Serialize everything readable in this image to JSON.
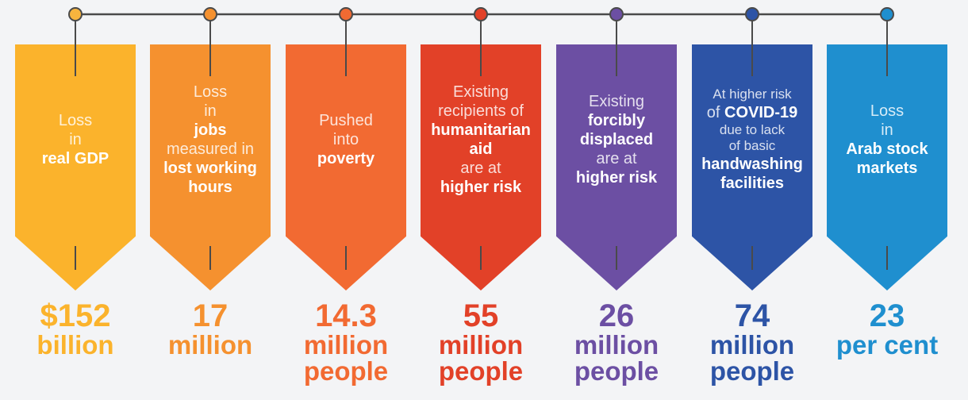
{
  "colors": {
    "connector_line": "#4a4a4a",
    "background": "#f3f4f6"
  },
  "cards": [
    {
      "color": "#fbb32c",
      "dot_color": "#f7b43e",
      "desc_lines": [
        {
          "text": "Loss",
          "weight": "light"
        },
        {
          "text": "in",
          "weight": "light"
        },
        {
          "text": "real GDP",
          "weight": "bold"
        }
      ],
      "value": "$152",
      "unit": [
        "billion"
      ]
    },
    {
      "color": "#f5912f",
      "dot_color": "#f5912f",
      "desc_lines": [
        {
          "text": "Loss",
          "weight": "light"
        },
        {
          "text": "in",
          "weight": "light"
        },
        {
          "text": "jobs",
          "weight": "bold"
        },
        {
          "text": "measured in",
          "weight": "light"
        },
        {
          "text": "lost working",
          "weight": "bold"
        },
        {
          "text": "hours",
          "weight": "bold"
        }
      ],
      "value": "17",
      "unit": [
        "million"
      ]
    },
    {
      "color": "#f26a32",
      "dot_color": "#f26a32",
      "desc_lines": [
        {
          "text": "Pushed",
          "weight": "light"
        },
        {
          "text": "into",
          "weight": "light"
        },
        {
          "text": "poverty",
          "weight": "bold"
        }
      ],
      "value": "14.3",
      "unit": [
        "million",
        "people"
      ]
    },
    {
      "color": "#e24128",
      "dot_color": "#e24128",
      "desc_lines": [
        {
          "text": "Existing",
          "weight": "light"
        },
        {
          "text": "recipients of",
          "weight": "light"
        },
        {
          "text": "humanitarian",
          "weight": "bold"
        },
        {
          "text": "aid",
          "weight": "bold"
        },
        {
          "text": "are at",
          "weight": "light"
        },
        {
          "text": "higher risk",
          "weight": "bold"
        }
      ],
      "value": "55",
      "unit": [
        "million",
        "people"
      ]
    },
    {
      "color": "#6c4fa3",
      "dot_color": "#6c4fa3",
      "desc_lines": [
        {
          "text": "Existing",
          "weight": "light"
        },
        {
          "text": "forcibly",
          "weight": "bold"
        },
        {
          "text": "displaced",
          "weight": "bold"
        },
        {
          "text": "are at",
          "weight": "light"
        },
        {
          "text": "higher risk",
          "weight": "bold"
        }
      ],
      "value": "26",
      "unit": [
        "million",
        "people"
      ]
    },
    {
      "color": "#2d54a6",
      "dot_color": "#2d54a6",
      "desc_lines": [
        {
          "text": "At higher risk",
          "weight": "light",
          "size": "sm"
        },
        {
          "text": "of COVID-19",
          "weight": "mixed",
          "pre": "of ",
          "bold": "COVID-19"
        },
        {
          "text": "due to lack",
          "weight": "light",
          "size": "sm"
        },
        {
          "text": "of basic",
          "weight": "light",
          "size": "sm"
        },
        {
          "text": "handwashing",
          "weight": "bold"
        },
        {
          "text": "facilities",
          "weight": "bold"
        }
      ],
      "value": "74",
      "unit": [
        "million",
        "people"
      ]
    },
    {
      "color": "#1f8fcf",
      "dot_color": "#1f8fcf",
      "desc_lines": [
        {
          "text": "Loss",
          "weight": "light"
        },
        {
          "text": "in",
          "weight": "light"
        },
        {
          "text": "Arab stock",
          "weight": "bold"
        },
        {
          "text": "markets",
          "weight": "bold"
        }
      ],
      "value": "23",
      "unit": [
        "per cent"
      ]
    }
  ]
}
